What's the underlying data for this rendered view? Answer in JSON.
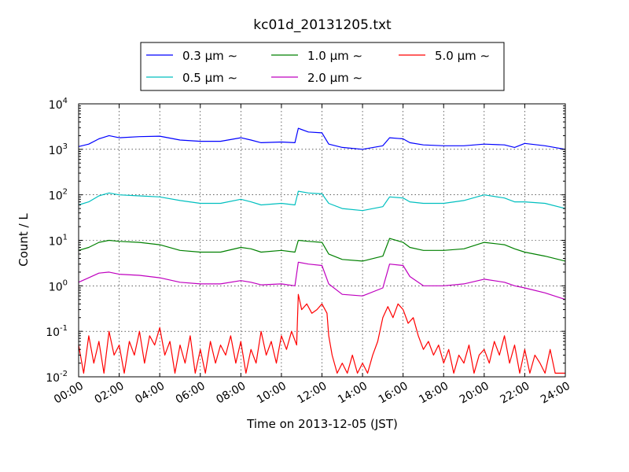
{
  "chart_data": {
    "type": "line",
    "title": "kc01d_20131205.txt",
    "xlabel": "Time on 2013-12-05 (JST)",
    "ylabel": "Count / L",
    "yscale": "log",
    "ylim": [
      0.01,
      10000
    ],
    "xlim": [
      "00:00",
      "24:00"
    ],
    "grid": true,
    "legend_position": "top-center",
    "x_ticks": [
      "00:00",
      "02:00",
      "04:00",
      "06:00",
      "08:00",
      "10:00",
      "12:00",
      "14:00",
      "16:00",
      "18:00",
      "20:00",
      "22:00",
      "24:00"
    ],
    "y_ticks": [
      {
        "base": "10",
        "exp": "-2"
      },
      {
        "base": "10",
        "exp": "-1"
      },
      {
        "base": "10",
        "exp": "0"
      },
      {
        "base": "10",
        "exp": "1"
      },
      {
        "base": "10",
        "exp": "2"
      },
      {
        "base": "10",
        "exp": "3"
      },
      {
        "base": "10",
        "exp": "4"
      }
    ],
    "series": [
      {
        "name": "0.3 μm ∼",
        "color": "#0000ff",
        "x": [
          "00:00",
          "00:30",
          "01:00",
          "01:30",
          "02:00",
          "03:00",
          "04:00",
          "05:00",
          "06:00",
          "07:00",
          "08:00",
          "08:30",
          "09:00",
          "10:00",
          "10:40",
          "10:50",
          "11:20",
          "12:00",
          "12:20",
          "13:00",
          "14:00",
          "15:00",
          "15:20",
          "16:00",
          "16:20",
          "17:00",
          "18:00",
          "19:00",
          "20:00",
          "21:00",
          "21:30",
          "22:00",
          "23:00",
          "24:00"
        ],
        "values": [
          1150,
          1300,
          1700,
          2000,
          1800,
          1900,
          1950,
          1600,
          1500,
          1500,
          1800,
          1600,
          1400,
          1450,
          1400,
          2900,
          2400,
          2300,
          1300,
          1100,
          1000,
          1200,
          1800,
          1700,
          1400,
          1250,
          1200,
          1200,
          1300,
          1250,
          1100,
          1350,
          1200,
          1000
        ]
      },
      {
        "name": "0.5 μm ∼",
        "color": "#00bfbf",
        "x": [
          "00:00",
          "00:30",
          "01:00",
          "01:30",
          "02:00",
          "03:00",
          "04:00",
          "05:00",
          "06:00",
          "07:00",
          "08:00",
          "08:30",
          "09:00",
          "10:00",
          "10:40",
          "10:50",
          "11:20",
          "12:00",
          "12:20",
          "13:00",
          "14:00",
          "15:00",
          "15:20",
          "16:00",
          "16:20",
          "17:00",
          "18:00",
          "19:00",
          "20:00",
          "21:00",
          "21:30",
          "22:00",
          "23:00",
          "24:00"
        ],
        "values": [
          60,
          70,
          95,
          110,
          100,
          95,
          90,
          75,
          65,
          65,
          80,
          70,
          60,
          65,
          60,
          120,
          110,
          105,
          65,
          50,
          45,
          55,
          90,
          85,
          70,
          65,
          65,
          75,
          100,
          85,
          70,
          70,
          65,
          50
        ]
      },
      {
        "name": "1.0 μm ∼",
        "color": "#008000",
        "x": [
          "00:00",
          "00:30",
          "01:00",
          "01:30",
          "02:00",
          "03:00",
          "04:00",
          "05:00",
          "06:00",
          "07:00",
          "08:00",
          "08:30",
          "09:00",
          "10:00",
          "10:40",
          "10:50",
          "11:20",
          "12:00",
          "12:20",
          "13:00",
          "14:00",
          "15:00",
          "15:20",
          "16:00",
          "16:20",
          "17:00",
          "18:00",
          "19:00",
          "20:00",
          "21:00",
          "21:30",
          "22:00",
          "23:00",
          "24:00"
        ],
        "values": [
          6,
          7,
          9,
          10,
          9.5,
          9,
          8,
          6,
          5.5,
          5.5,
          7,
          6.5,
          5.5,
          6,
          5.5,
          10,
          9.5,
          9,
          5,
          3.8,
          3.5,
          4.5,
          11,
          9,
          7,
          6,
          6,
          6.5,
          9,
          8,
          6.5,
          5.5,
          4.5,
          3.5
        ]
      },
      {
        "name": "2.0 μm ∼",
        "color": "#bf00bf",
        "x": [
          "00:00",
          "00:30",
          "01:00",
          "01:30",
          "02:00",
          "03:00",
          "04:00",
          "05:00",
          "06:00",
          "07:00",
          "08:00",
          "08:30",
          "09:00",
          "10:00",
          "10:40",
          "10:50",
          "11:20",
          "12:00",
          "12:20",
          "13:00",
          "14:00",
          "15:00",
          "15:20",
          "16:00",
          "16:20",
          "17:00",
          "18:00",
          "19:00",
          "20:00",
          "21:00",
          "21:30",
          "22:00",
          "23:00",
          "24:00"
        ],
        "values": [
          1.2,
          1.5,
          1.9,
          2.0,
          1.8,
          1.7,
          1.5,
          1.2,
          1.1,
          1.1,
          1.3,
          1.2,
          1.05,
          1.1,
          1.0,
          3.3,
          3.0,
          2.8,
          1.1,
          0.65,
          0.6,
          0.9,
          3.0,
          2.8,
          1.6,
          1.0,
          1.0,
          1.1,
          1.4,
          1.2,
          1.0,
          0.9,
          0.7,
          0.5
        ]
      },
      {
        "name": "5.0 μm ∼",
        "color": "#ff0000",
        "x": [
          "00:00",
          "00:15",
          "00:30",
          "00:45",
          "01:00",
          "01:15",
          "01:30",
          "01:45",
          "02:00",
          "02:15",
          "02:30",
          "02:45",
          "03:00",
          "03:15",
          "03:30",
          "03:45",
          "04:00",
          "04:15",
          "04:30",
          "04:45",
          "05:00",
          "05:15",
          "05:30",
          "05:45",
          "06:00",
          "06:15",
          "06:30",
          "06:45",
          "07:00",
          "07:15",
          "07:30",
          "07:45",
          "08:00",
          "08:15",
          "08:30",
          "08:45",
          "09:00",
          "09:15",
          "09:30",
          "09:45",
          "10:00",
          "10:15",
          "10:30",
          "10:45",
          "10:50",
          "11:00",
          "11:15",
          "11:30",
          "11:45",
          "12:00",
          "12:15",
          "12:20",
          "12:30",
          "12:45",
          "13:00",
          "13:15",
          "13:30",
          "13:45",
          "14:00",
          "14:15",
          "14:30",
          "14:45",
          "15:00",
          "15:15",
          "15:30",
          "15:45",
          "16:00",
          "16:15",
          "16:30",
          "16:45",
          "17:00",
          "17:15",
          "17:30",
          "17:45",
          "18:00",
          "18:15",
          "18:30",
          "18:45",
          "19:00",
          "19:15",
          "19:30",
          "19:45",
          "20:00",
          "20:15",
          "20:30",
          "20:45",
          "21:00",
          "21:15",
          "21:30",
          "21:45",
          "22:00",
          "22:15",
          "22:30",
          "22:45",
          "23:00",
          "23:15",
          "23:30",
          "23:45",
          "24:00"
        ],
        "values": [
          0.05,
          0.012,
          0.08,
          0.02,
          0.06,
          0.012,
          0.1,
          0.03,
          0.05,
          0.012,
          0.06,
          0.03,
          0.1,
          0.02,
          0.08,
          0.05,
          0.12,
          0.03,
          0.06,
          0.012,
          0.05,
          0.02,
          0.08,
          0.012,
          0.04,
          0.012,
          0.06,
          0.02,
          0.05,
          0.03,
          0.08,
          0.02,
          0.06,
          0.012,
          0.04,
          0.02,
          0.1,
          0.03,
          0.06,
          0.02,
          0.08,
          0.04,
          0.1,
          0.05,
          0.65,
          0.3,
          0.4,
          0.25,
          0.3,
          0.4,
          0.25,
          0.08,
          0.03,
          0.012,
          0.02,
          0.012,
          0.03,
          0.012,
          0.02,
          0.012,
          0.03,
          0.06,
          0.2,
          0.35,
          0.2,
          0.4,
          0.3,
          0.15,
          0.2,
          0.08,
          0.04,
          0.06,
          0.03,
          0.05,
          0.02,
          0.04,
          0.012,
          0.03,
          0.02,
          0.05,
          0.012,
          0.03,
          0.04,
          0.02,
          0.06,
          0.03,
          0.08,
          0.02,
          0.05,
          0.012,
          0.04,
          0.012,
          0.03,
          0.02,
          0.012,
          0.04,
          0.012,
          0.012,
          0.012
        ]
      }
    ]
  }
}
